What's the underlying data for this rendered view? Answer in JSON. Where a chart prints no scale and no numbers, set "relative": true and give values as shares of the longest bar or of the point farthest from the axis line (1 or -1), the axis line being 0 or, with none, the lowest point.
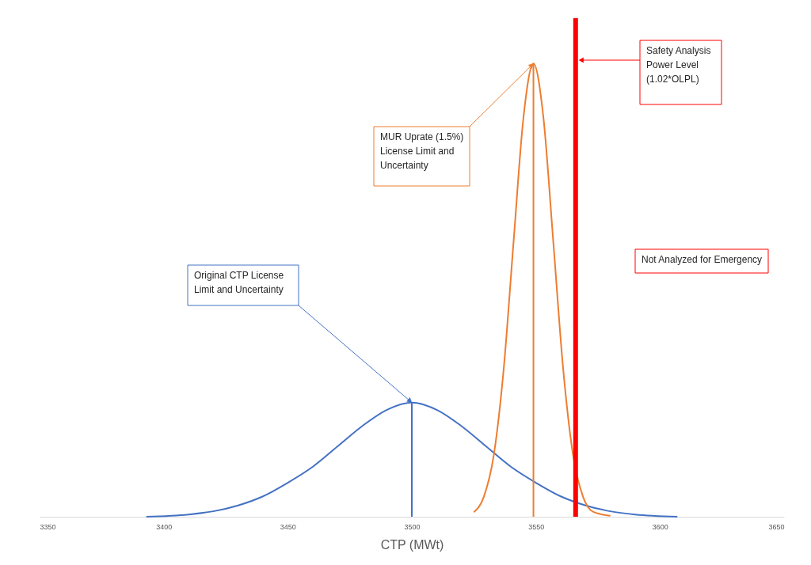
{
  "chart_data": {
    "type": "line",
    "relative": true,
    "xlabel": "CTP (MWt)",
    "xlim": [
      3350,
      3650
    ],
    "xticks": [
      3350,
      3400,
      3450,
      3500,
      3550,
      3600,
      3650
    ],
    "grid": false,
    "legend": false,
    "marker": "none",
    "line_style": "solid",
    "series": [
      {
        "color": "#4472c4",
        "x": [
          3393,
          3410,
          3420,
          3430,
          3440,
          3450,
          3460,
          3470,
          3480,
          3490,
          3500,
          3510,
          3520,
          3530,
          3540,
          3550,
          3560,
          3570,
          3580,
          3590,
          3607
        ],
        "values": [
          0,
          0.005,
          0.012,
          0.025,
          0.045,
          0.075,
          0.11,
          0.155,
          0.2,
          0.236,
          0.252,
          0.236,
          0.2,
          0.155,
          0.11,
          0.075,
          0.045,
          0.025,
          0.012,
          0.005,
          0
        ]
      },
      {
        "color": "#ed7d31",
        "x": [
          3525,
          3529,
          3533,
          3537,
          3541,
          3545,
          3549,
          3553,
          3557,
          3561,
          3565,
          3569,
          3573,
          3580
        ],
        "values": [
          0.01,
          0.044,
          0.135,
          0.325,
          0.607,
          0.882,
          1,
          0.882,
          0.607,
          0.325,
          0.135,
          0.044,
          0.011,
          0.002
        ]
      },
      {
        "color": "#4472c4",
        "x": [
          3500,
          3500
        ],
        "values": [
          0,
          0.252
        ]
      },
      {
        "color": "#ed7d31",
        "x": [
          3549,
          3549
        ],
        "values": [
          0,
          1
        ]
      }
    ],
    "ref_lines": [
      {
        "axis": "x",
        "value": 3566,
        "color": "#ff0000",
        "line_style": "solid"
      }
    ],
    "annotations": [
      "Original CTP License Limit and Uncertainty",
      {
        "text": "MUR Uprate (1.5%) License Limit and Uncertainty",
        "x": 3549,
        "y": 1
      },
      "Safety Analysis Power Level (1.02*OLPL)",
      "Not Analyzed for Emergency"
    ]
  }
}
